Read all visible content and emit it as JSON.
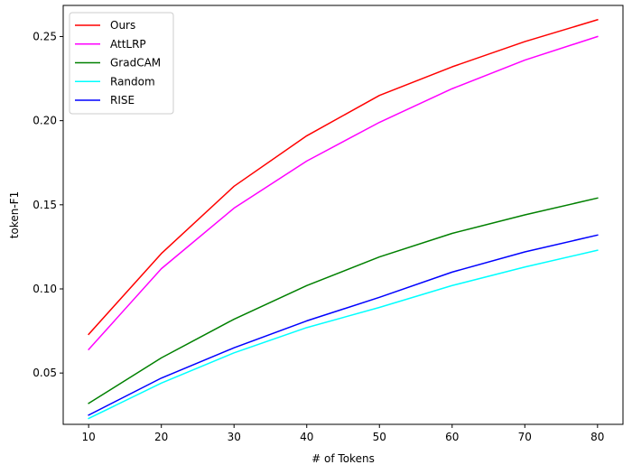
{
  "chart_data": {
    "type": "line",
    "title": "",
    "xlabel": "# of Tokens",
    "ylabel": "token-F1",
    "x": [
      10,
      20,
      30,
      40,
      50,
      60,
      70,
      80
    ],
    "xlim": [
      6.5,
      83.5
    ],
    "ylim": [
      0.0195,
      0.2685
    ],
    "xticks": [
      10,
      20,
      30,
      40,
      50,
      60,
      70,
      80
    ],
    "yticks": [
      0.05,
      0.1,
      0.15,
      0.2,
      0.25
    ],
    "ytick_labels": [
      "0.05",
      "0.10",
      "0.15",
      "0.20",
      "0.25"
    ],
    "grid": false,
    "legend_position": "top-left",
    "series": [
      {
        "name": "Ours",
        "color": "#ff0000",
        "values": [
          0.073,
          0.121,
          0.161,
          0.191,
          0.215,
          0.232,
          0.247,
          0.26
        ]
      },
      {
        "name": "AttLRP",
        "color": "#ff00ff",
        "values": [
          0.064,
          0.112,
          0.148,
          0.176,
          0.199,
          0.219,
          0.236,
          0.25
        ]
      },
      {
        "name": "GradCAM",
        "color": "#008000",
        "values": [
          0.032,
          0.059,
          0.082,
          0.102,
          0.119,
          0.133,
          0.144,
          0.154
        ]
      },
      {
        "name": "Random",
        "color": "#00ffff",
        "values": [
          0.023,
          0.044,
          0.062,
          0.077,
          0.089,
          0.102,
          0.113,
          0.123
        ]
      },
      {
        "name": "RISE",
        "color": "#0000ff",
        "values": [
          0.025,
          0.047,
          0.065,
          0.081,
          0.095,
          0.11,
          0.122,
          0.132
        ]
      }
    ]
  }
}
